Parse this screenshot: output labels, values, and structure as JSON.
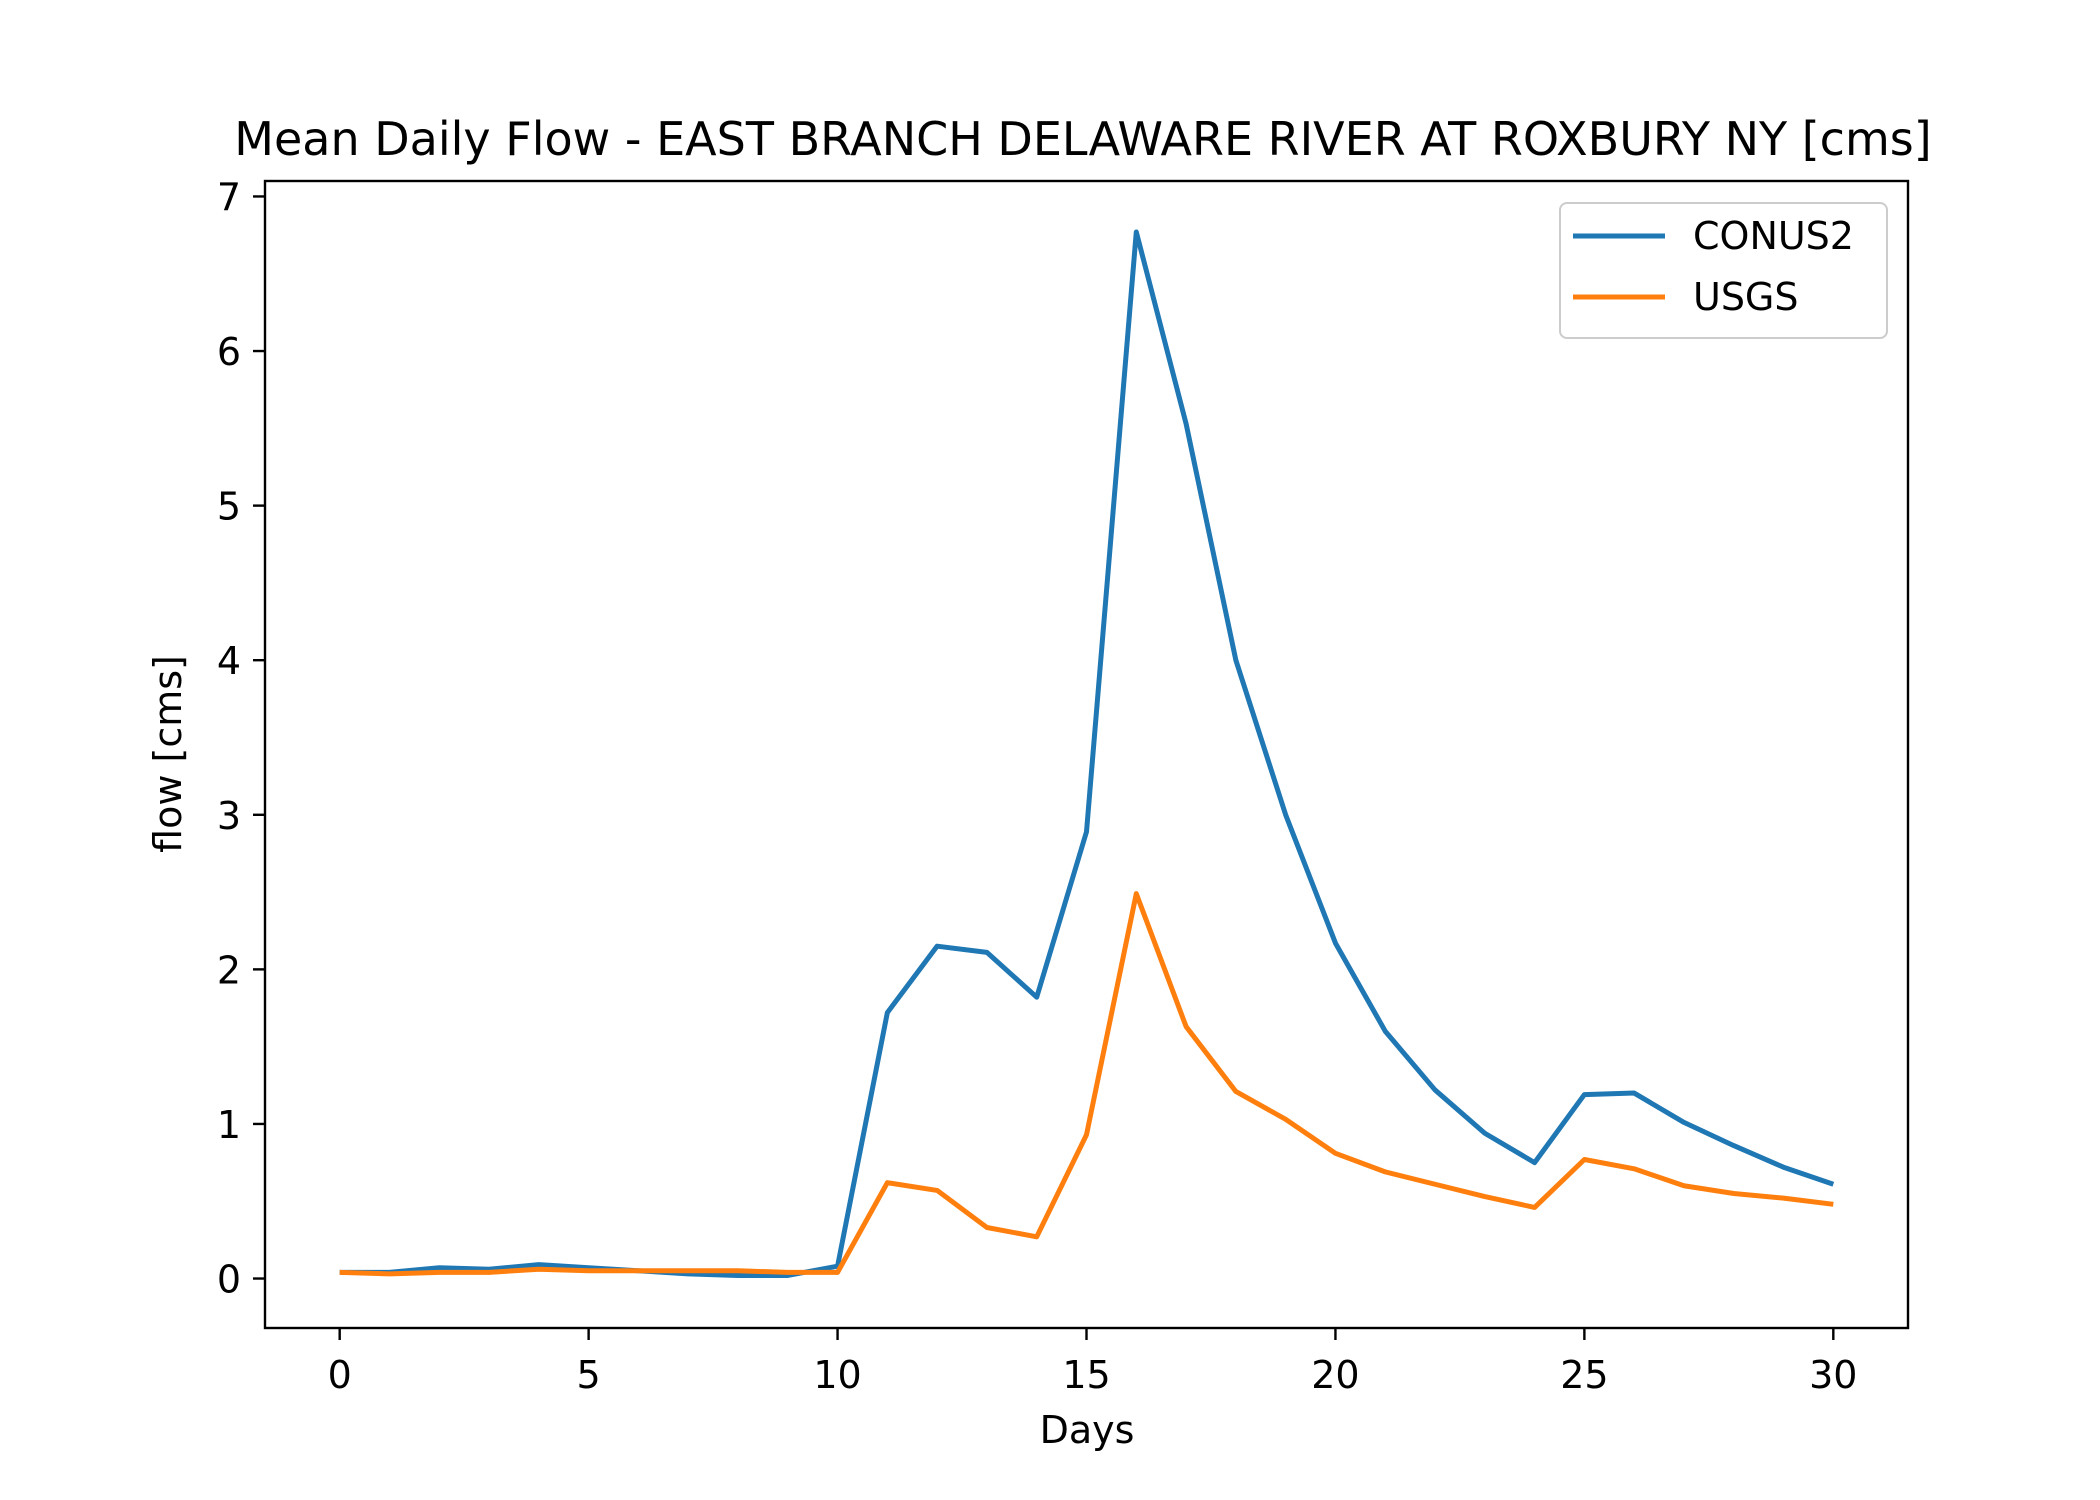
{
  "chart_data": {
    "type": "line",
    "title": "Mean Daily Flow - EAST BRANCH DELAWARE RIVER AT ROXBURY NY [cms]",
    "xlabel": "Days",
    "ylabel": "flow [cms]",
    "xlim": [
      -1.5,
      31.5
    ],
    "ylim": [
      -0.32,
      7.1
    ],
    "xticks": [
      0,
      5,
      10,
      15,
      20,
      25,
      30
    ],
    "yticks": [
      0,
      1,
      2,
      3,
      4,
      5,
      6,
      7
    ],
    "grid": false,
    "legend_position": "top-right",
    "x": [
      0,
      1,
      2,
      3,
      4,
      5,
      6,
      7,
      8,
      9,
      10,
      11,
      12,
      13,
      14,
      15,
      16,
      17,
      18,
      19,
      20,
      21,
      22,
      23,
      24,
      25,
      26,
      27,
      28,
      29,
      30
    ],
    "series": [
      {
        "name": "CONUS2",
        "color": "#1f77b4",
        "values": [
          0.04,
          0.04,
          0.07,
          0.06,
          0.09,
          0.07,
          0.05,
          0.03,
          0.02,
          0.02,
          0.08,
          1.72,
          2.15,
          2.11,
          1.82,
          2.89,
          6.77,
          5.53,
          4.0,
          3.0,
          2.17,
          1.6,
          1.22,
          0.94,
          0.75,
          1.19,
          1.2,
          1.01,
          0.86,
          0.72,
          0.61
        ]
      },
      {
        "name": "USGS",
        "color": "#ff7f0e",
        "values": [
          0.04,
          0.03,
          0.04,
          0.04,
          0.06,
          0.05,
          0.05,
          0.05,
          0.05,
          0.04,
          0.04,
          0.62,
          0.57,
          0.33,
          0.27,
          0.93,
          2.49,
          1.63,
          1.21,
          1.03,
          0.81,
          0.69,
          0.61,
          0.53,
          0.46,
          0.77,
          0.71,
          0.6,
          0.55,
          0.52,
          0.48
        ]
      }
    ]
  }
}
